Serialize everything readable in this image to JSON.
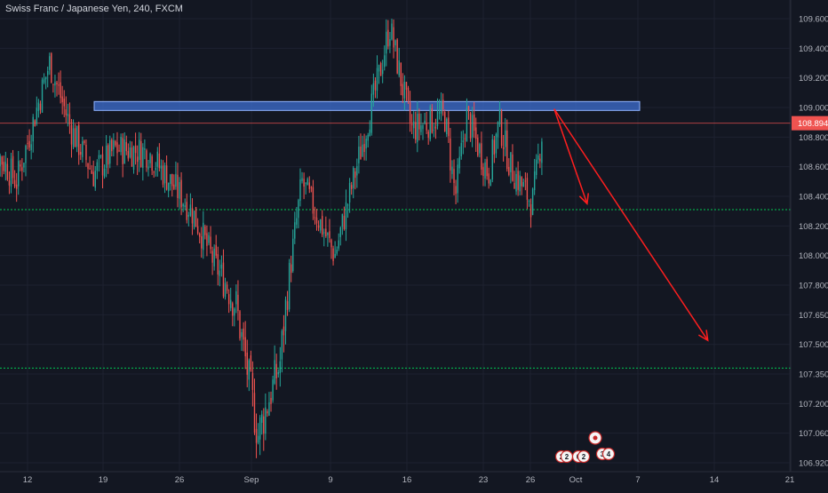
{
  "header": {
    "symbol_title": "Swiss Franc / Japanese Yen, 240, FXCM"
  },
  "colors": {
    "background": "#131722",
    "up": "#26a69a",
    "down": "#ef5350",
    "grid": "#1e2230",
    "axis_text": "#b2b5be",
    "support_line": "#00c853",
    "resistance_zone": "#3f6fd1",
    "price_line": "#ef5350",
    "arrow": "#ff1f1f"
  },
  "price_axis": {
    "ticks": [
      "109.600",
      "109.400",
      "109.200",
      "109.000",
      "108.800",
      "108.600",
      "108.400",
      "108.200",
      "108.000",
      "107.800",
      "107.650",
      "107.500",
      "107.350",
      "107.200",
      "107.060",
      "106.920"
    ],
    "current_price": "108.894"
  },
  "time_axis": {
    "ticks": [
      "12",
      "19",
      "26",
      "Sep",
      "9",
      "16",
      "23",
      "26",
      "Oct",
      "7",
      "14",
      "21"
    ]
  },
  "event_markers": [
    "2",
    "2",
    "6",
    "2",
    "3",
    "4"
  ],
  "chart_data": {
    "type": "candlestick",
    "title": "Swiss Franc / Japanese Yen, 240, FXCM",
    "y_range": [
      106.92,
      109.66
    ],
    "current_price": 108.894,
    "resistance_zone": [
      108.98,
      109.04
    ],
    "support_levels": [
      108.31,
      107.38
    ],
    "projection_arrows": [
      {
        "from": [
          "Sep 29",
          108.99
        ],
        "to": [
          "Oct 2",
          108.35
        ]
      },
      {
        "from": [
          "Sep 29",
          108.99
        ],
        "to": [
          "Oct 13",
          107.52
        ]
      }
    ],
    "candle_waypoints": [
      {
        "x": "Aug 8",
        "close": 108.83
      },
      {
        "x": "Aug 11",
        "close": 108.5
      },
      {
        "x": "Aug 14",
        "close": 109.3
      },
      {
        "x": "Aug 16",
        "close": 108.85
      },
      {
        "x": "Aug 18",
        "close": 108.55
      },
      {
        "x": "Aug 20",
        "close": 108.72
      },
      {
        "x": "Aug 23",
        "close": 108.7
      },
      {
        "x": "Aug 27",
        "close": 108.3
      },
      {
        "x": "Aug 29",
        "close": 107.95
      },
      {
        "x": "Aug 31",
        "close": 107.7
      },
      {
        "x": "Sep 2",
        "close": 107.05
      },
      {
        "x": "Sep 4",
        "close": 107.4
      },
      {
        "x": "Sep 6",
        "close": 108.5
      },
      {
        "x": "Sep 9",
        "close": 108.0
      },
      {
        "x": "Sep 11",
        "close": 108.6
      },
      {
        "x": "Sep 13",
        "close": 109.2
      },
      {
        "x": "Sep 14",
        "close": 109.55
      },
      {
        "x": "Sep 16",
        "close": 108.85
      },
      {
        "x": "Sep 19",
        "close": 108.95
      },
      {
        "x": "Sep 20",
        "close": 108.4
      },
      {
        "x": "Sep 21",
        "close": 108.95
      },
      {
        "x": "Sep 23",
        "close": 108.55
      },
      {
        "x": "Sep 24",
        "close": 108.9
      },
      {
        "x": "Sep 25",
        "close": 108.6
      },
      {
        "x": "Sep 27",
        "close": 108.35
      },
      {
        "x": "Sep 28",
        "close": 108.89
      }
    ]
  }
}
